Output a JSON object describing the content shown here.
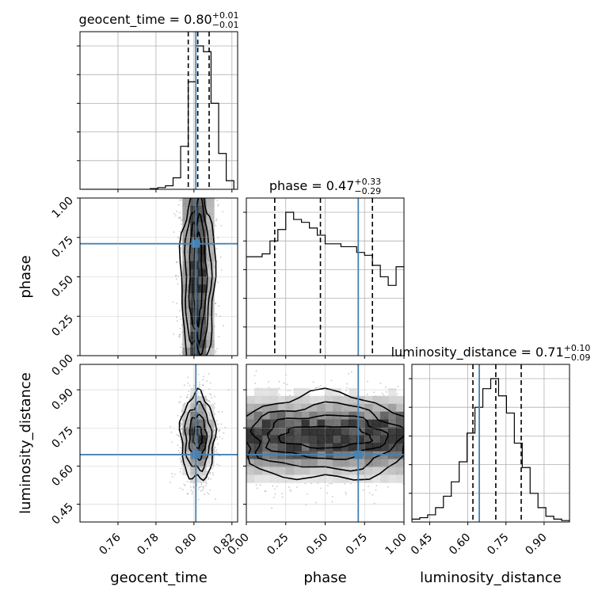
{
  "chart_data": {
    "type": "corner",
    "parameters": [
      "geocent_time",
      "phase",
      "luminosity_distance"
    ],
    "ranges": {
      "geocent_time": [
        0.74,
        0.823
      ],
      "phase": [
        0.0,
        1.0
      ],
      "luminosity_distance": [
        0.38,
        1.0
      ]
    },
    "ticks": {
      "geocent_time": {
        "values": [
          0.76,
          0.78,
          0.8,
          0.82
        ],
        "labels": [
          "0.76",
          "0.78",
          "0.80",
          "0.82"
        ]
      },
      "phase": {
        "values": [
          0.0,
          0.25,
          0.5,
          0.75,
          1.0
        ],
        "labels": [
          "0.00",
          "0.25",
          "0.50",
          "0.75",
          "1.00"
        ]
      },
      "luminosity_distance": {
        "values": [
          0.45,
          0.6,
          0.75,
          0.9
        ],
        "labels": [
          "0.45",
          "0.60",
          "0.75",
          "0.90"
        ]
      }
    },
    "truths": {
      "geocent_time": 0.801,
      "phase": 0.71,
      "luminosity_distance": 0.645
    },
    "truth_color": "#4682b4",
    "grid": true,
    "titles": [
      {
        "param": "geocent_time",
        "text": "geocent_time = 0.80",
        "plus": "+0.01",
        "minus": "−0.01"
      },
      {
        "param": "phase",
        "text": "phase = 0.47",
        "plus": "+0.33",
        "minus": "−0.29"
      },
      {
        "param": "luminosity_distance",
        "text": "luminosity_distance = 0.71",
        "plus": "+0.10",
        "minus": "−0.09"
      }
    ],
    "marginals": {
      "geocent_time": {
        "edges": [
          0.741,
          0.745,
          0.749,
          0.753,
          0.757,
          0.761,
          0.765,
          0.769,
          0.773,
          0.777,
          0.781,
          0.785,
          0.789,
          0.793,
          0.797,
          0.801,
          0.805,
          0.809,
          0.813,
          0.817,
          0.821
        ],
        "counts": [
          0,
          0,
          0,
          0,
          0,
          0,
          0,
          0,
          0,
          0.5,
          1.2,
          2.5,
          8,
          30,
          75,
          100,
          96,
          60,
          25,
          6
        ],
        "quantiles": [
          0.797,
          0.802,
          0.808
        ]
      },
      "phase": {
        "edges": [
          0.0,
          0.05,
          0.1,
          0.15,
          0.2,
          0.25,
          0.3,
          0.35,
          0.4,
          0.45,
          0.5,
          0.55,
          0.6,
          0.65,
          0.7,
          0.75,
          0.8,
          0.85,
          0.9,
          0.95,
          1.0
        ],
        "counts": [
          69,
          69,
          71,
          80,
          88,
          100,
          95,
          93,
          89,
          84,
          78,
          78,
          76,
          76,
          72,
          70,
          63,
          55,
          49,
          62
        ],
        "quantiles": [
          0.18,
          0.47,
          0.8
        ]
      },
      "luminosity_distance": {
        "edges": [
          0.38,
          0.411,
          0.442,
          0.473,
          0.504,
          0.535,
          0.566,
          0.597,
          0.628,
          0.659,
          0.69,
          0.721,
          0.752,
          0.783,
          0.814,
          0.845,
          0.876,
          0.907,
          0.938,
          0.969,
          1.0
        ],
        "counts": [
          2,
          3,
          5,
          10,
          18,
          28,
          42,
          62,
          80,
          93,
          100,
          88,
          76,
          55,
          38,
          20,
          10,
          4,
          2,
          1
        ],
        "quantiles": [
          0.62,
          0.71,
          0.81
        ]
      }
    },
    "pairs": [
      {
        "x": "geocent_time",
        "y": "phase",
        "x_center": 0.802,
        "y_center": 0.5,
        "x_sigma": 0.0045,
        "y_sigma": 0.5,
        "x_uniform": false,
        "y_uniform": true
      },
      {
        "x": "geocent_time",
        "y": "luminosity_distance",
        "x_center": 0.802,
        "y_center": 0.715,
        "x_sigma": 0.0045,
        "y_sigma": 0.085,
        "x_uniform": false,
        "y_uniform": false
      },
      {
        "x": "phase",
        "y": "luminosity_distance",
        "x_center": 0.5,
        "y_center": 0.715,
        "x_sigma": 0.5,
        "y_sigma": 0.085,
        "x_uniform": true,
        "y_uniform": false
      }
    ]
  }
}
